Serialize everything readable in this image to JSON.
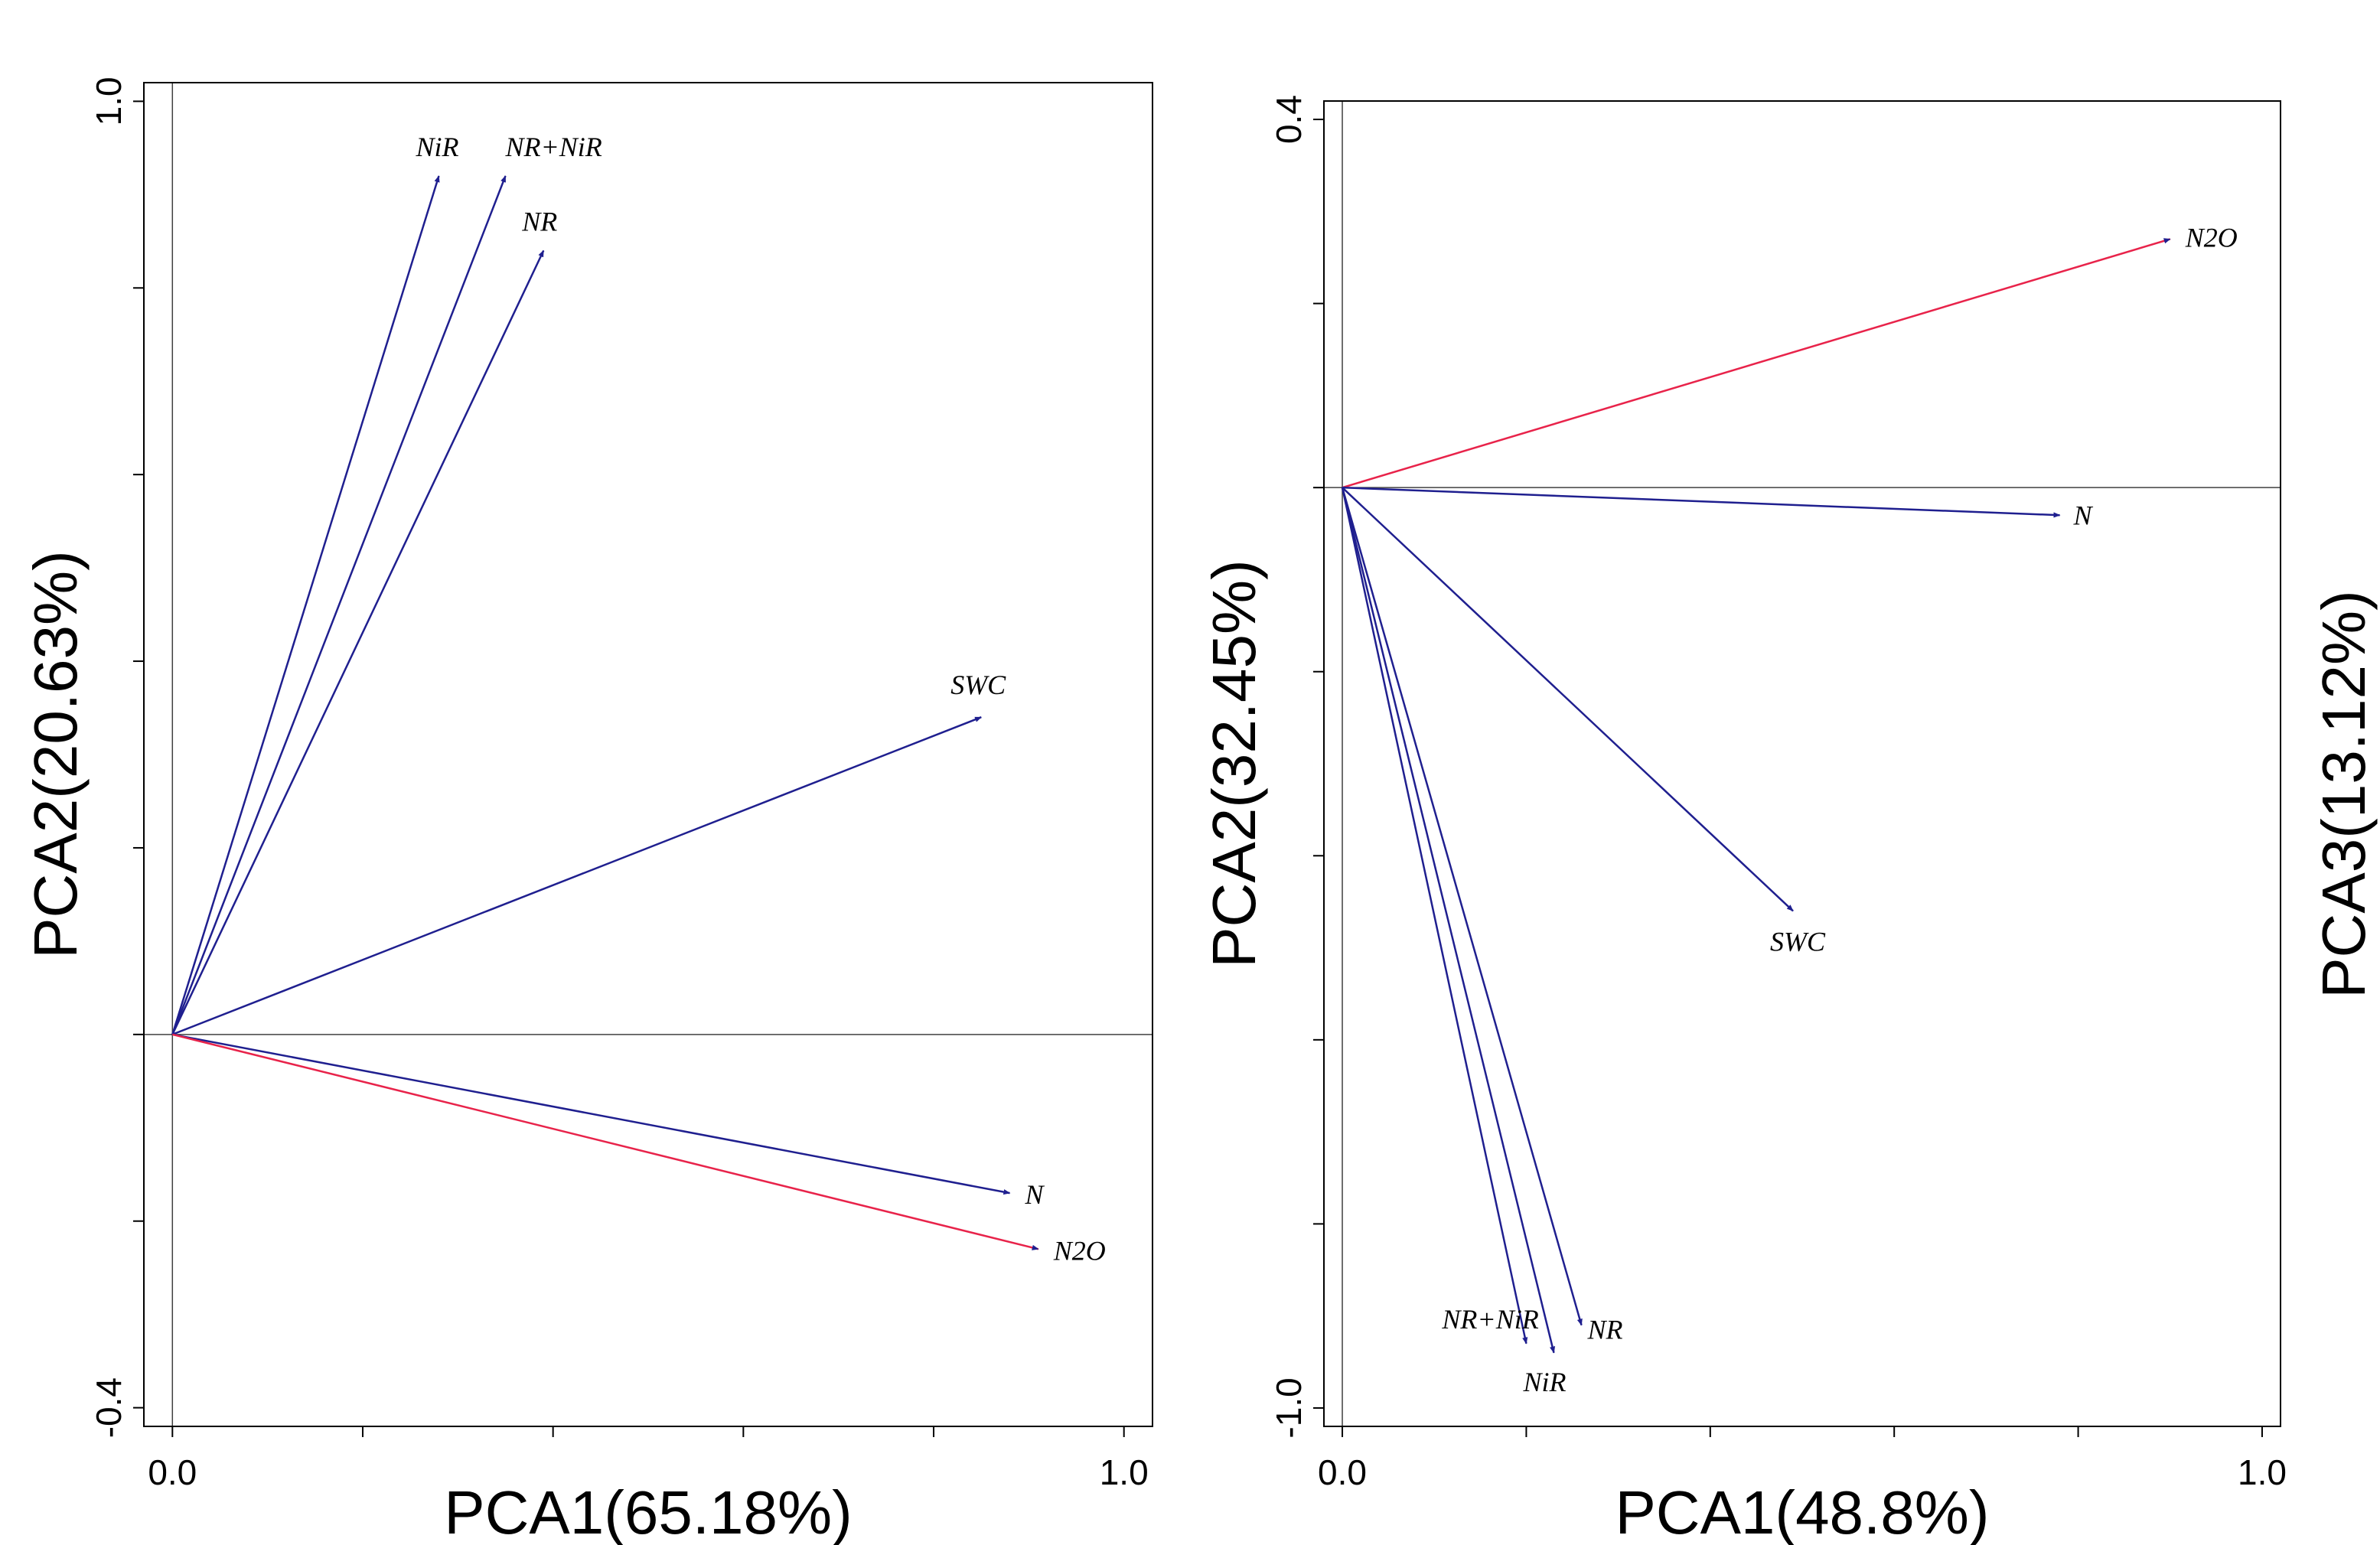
{
  "colors": {
    "blue": "#1f1f8f",
    "red": "#e8234a",
    "axis": "#000000"
  },
  "chart_data": [
    {
      "type": "scatter",
      "subtype": "pca-biplot",
      "xlabel": "PCA1(65.18%)",
      "ylabel": "PCA2(20.63%)",
      "right_label": "",
      "xlim": [
        -0.03,
        1.03
      ],
      "ylim": [
        -0.42,
        1.02
      ],
      "x_ticks": [
        0.0,
        0.2,
        0.4,
        0.6,
        0.8,
        1.0
      ],
      "y_ticks": [
        -0.4,
        -0.2,
        0.0,
        0.2,
        0.4,
        0.6,
        0.8,
        1.0
      ],
      "x_tick_labels": [
        {
          "value": 0.0,
          "text": "0.0"
        },
        {
          "value": 1.0,
          "text": "1.0"
        }
      ],
      "y_tick_labels": [
        {
          "value": 1.0,
          "text": "1.0"
        },
        {
          "value": -0.4,
          "text": "-0.4"
        }
      ],
      "vectors": [
        {
          "label": "NiR",
          "x": 0.28,
          "y": 0.92,
          "color": "blue"
        },
        {
          "label": "NR+NiR",
          "x": 0.35,
          "y": 0.92,
          "color": "blue"
        },
        {
          "label": "NR",
          "x": 0.39,
          "y": 0.84,
          "color": "blue"
        },
        {
          "label": "SWC",
          "x": 0.85,
          "y": 0.34,
          "color": "blue"
        },
        {
          "label": "N",
          "x": 0.88,
          "y": -0.17,
          "color": "blue"
        },
        {
          "label": "N2O",
          "x": 0.91,
          "y": -0.23,
          "color": "red"
        }
      ]
    },
    {
      "type": "scatter",
      "subtype": "pca-biplot",
      "xlabel": "PCA1(48.8%)",
      "ylabel": "PCA2(32.45%)",
      "right_label": "PCA3(13.12%)",
      "xlim": [
        -0.02,
        1.02
      ],
      "ylim": [
        -1.02,
        0.42
      ],
      "x_ticks": [
        0.0,
        0.2,
        0.4,
        0.6,
        0.8,
        1.0
      ],
      "y_ticks": [
        -1.0,
        -0.8,
        -0.6,
        -0.4,
        -0.2,
        0.0,
        0.2,
        0.4
      ],
      "x_tick_labels": [
        {
          "value": 0.0,
          "text": "0.0"
        },
        {
          "value": 1.0,
          "text": "1.0"
        }
      ],
      "y_tick_labels": [
        {
          "value": 0.4,
          "text": "0.4"
        },
        {
          "value": -1.0,
          "text": "-1.0"
        }
      ],
      "vectors": [
        {
          "label": "N2O",
          "x": 0.9,
          "y": 0.27,
          "color": "red"
        },
        {
          "label": "N",
          "x": 0.78,
          "y": -0.03,
          "color": "blue"
        },
        {
          "label": "SWC",
          "x": 0.49,
          "y": -0.46,
          "color": "blue"
        },
        {
          "label": "NR+NiR",
          "x": 0.2,
          "y": -0.93,
          "color": "blue"
        },
        {
          "label": "NiR",
          "x": 0.23,
          "y": -0.94,
          "color": "blue"
        },
        {
          "label": "NR",
          "x": 0.26,
          "y": -0.91,
          "color": "blue"
        }
      ]
    }
  ]
}
